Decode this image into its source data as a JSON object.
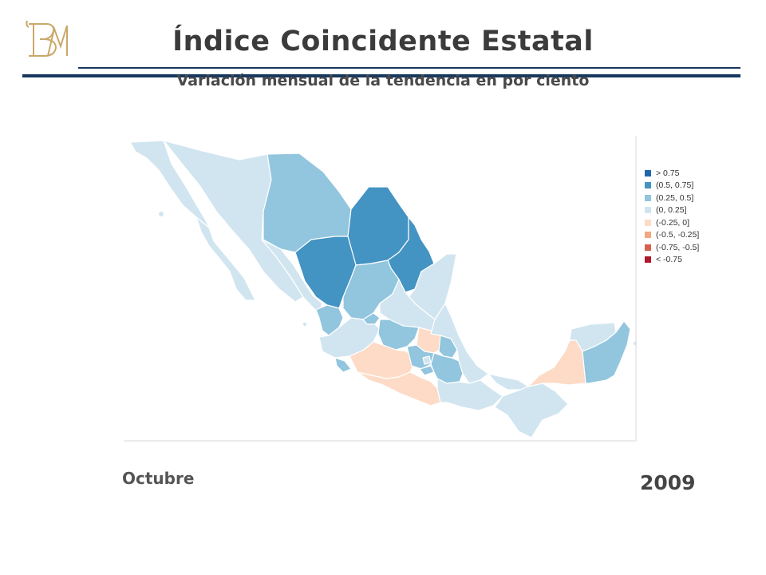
{
  "header": {
    "title": "Índice Coincidente Estatal",
    "subtitle": "Variación mensual de la tendencia en por ciento"
  },
  "legend": [
    {
      "label": "> 0.75",
      "color": "#2166ac"
    },
    {
      "label": "(0.5, 0.75]",
      "color": "#4393c3"
    },
    {
      "label": "(0.25, 0.5]",
      "color": "#92c5de"
    },
    {
      "label": "(0, 0.25]",
      "color": "#d1e5f0"
    },
    {
      "label": "(-0.25, 0]",
      "color": "#fddbc7"
    },
    {
      "label": "(-0.5, -0.25]",
      "color": "#f4a582"
    },
    {
      "label": "(-0.75, -0.5]",
      "color": "#d6604d"
    },
    {
      "label": "< -0.75",
      "color": "#b2182b"
    }
  ],
  "map": {
    "state_classes": {
      "Baja California": "(0, 0.25]",
      "Baja California Sur": "(0, 0.25]",
      "Sonora": "(0, 0.25]",
      "Chihuahua": "(0.25, 0.5]",
      "Coahuila": "(0.5, 0.75]",
      "Nuevo León": "(0.5, 0.75]",
      "Tamaulipas": "(0, 0.25]",
      "Sinaloa": "(0, 0.25]",
      "Durango": "(0.5, 0.75]",
      "Zacatecas": "(0.25, 0.5]",
      "San Luis Potosí": "(0, 0.25]",
      "Nayarit": "(0.25, 0.5]",
      "Aguascalientes": "(0.25, 0.5]",
      "Jalisco": "(0, 0.25]",
      "Guanajuato": "(0.25, 0.5]",
      "Querétaro": "(-0.25, 0]",
      "Hidalgo": "(0.25, 0.5]",
      "Colima": "(0.25, 0.5]",
      "Michoacán": "(-0.25, 0]",
      "Estado de México": "(0.25, 0.5]",
      "Distrito Federal": "(0, 0.25]",
      "Morelos": "(0.25, 0.5]",
      "Tlaxcala": "(0.25, 0.5]",
      "Puebla": "(0.25, 0.5]",
      "Veracruz": "(0, 0.25]",
      "Guerrero": "(-0.25, 0]",
      "Oaxaca": "(0, 0.25]",
      "Tabasco": "(0, 0.25]",
      "Chiapas": "(0, 0.25]",
      "Campeche": "(-0.25, 0]",
      "Yucatán": "(0, 0.25]",
      "Quintana Roo": "(0.25, 0.5]"
    }
  },
  "period": {
    "month": "Octubre",
    "year": "2009"
  }
}
